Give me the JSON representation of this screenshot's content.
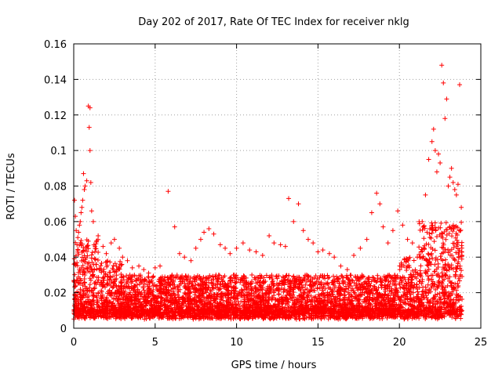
{
  "chart_data": {
    "type": "scatter",
    "title": "Day 202 of 2017, Rate Of TEC Index for receiver nklg",
    "xlabel": "GPS time / hours",
    "ylabel": "ROTI / TECUs",
    "xlim": [
      0,
      25
    ],
    "ylim": [
      0,
      0.16
    ],
    "x_ticks": [
      0,
      5,
      10,
      15,
      20,
      25
    ],
    "x_tick_labels": [
      "0",
      "5",
      "10",
      "15",
      "20",
      "25"
    ],
    "y_ticks": [
      0,
      0.02,
      0.04,
      0.06,
      0.08,
      0.1,
      0.12,
      0.14,
      0.16
    ],
    "y_tick_labels": [
      "0",
      "0.02",
      "0.04",
      "0.06",
      "0.08",
      "0.1",
      "0.12",
      "0.14",
      "0.16"
    ],
    "grid": true,
    "marker": "plus",
    "color": "#ff0000",
    "series": [
      {
        "values_x": [
          0.05,
          0.1,
          0.15,
          0.2,
          0.25,
          0.3,
          0.35,
          0.4,
          0.45,
          0.5,
          0.55,
          0.6,
          0.65,
          0.7,
          0.8,
          0.9,
          0.95,
          1.0,
          1.0,
          1.05,
          1.1,
          1.2,
          1.5,
          1.8,
          2.0,
          2.3,
          2.5,
          2.8,
          3.0,
          3.3,
          3.6,
          4.0,
          4.3,
          4.6,
          5.0,
          5.3,
          5.8,
          6.2,
          6.5,
          6.8,
          7.2,
          7.5,
          7.8,
          8.0,
          8.3,
          8.6,
          9.0,
          9.3,
          9.6,
          10.0,
          10.4,
          10.8,
          11.2,
          11.6,
          12.0,
          12.3,
          12.7,
          13.0,
          13.2,
          13.5,
          13.8,
          14.1,
          14.4,
          14.7,
          15.0,
          15.3,
          15.7,
          16.0,
          16.4,
          16.8,
          17.2,
          17.6,
          18.0,
          18.3,
          18.6,
          18.8,
          19.0,
          19.3,
          19.6,
          19.9,
          20.2,
          20.5,
          20.8,
          21.1,
          21.4,
          21.6,
          21.8,
          22.0,
          22.1,
          22.2,
          22.3,
          22.4,
          22.5,
          22.6,
          22.7,
          22.8,
          22.9,
          23.0,
          23.1,
          23.2,
          23.3,
          23.4,
          23.5,
          23.6,
          23.7,
          23.8
        ],
        "values_y": [
          0.072,
          0.063,
          0.055,
          0.047,
          0.051,
          0.054,
          0.058,
          0.06,
          0.065,
          0.068,
          0.072,
          0.087,
          0.078,
          0.08,
          0.083,
          0.125,
          0.113,
          0.1,
          0.124,
          0.082,
          0.066,
          0.06,
          0.052,
          0.046,
          0.042,
          0.048,
          0.05,
          0.045,
          0.04,
          0.038,
          0.034,
          0.035,
          0.033,
          0.031,
          0.034,
          0.035,
          0.077,
          0.057,
          0.042,
          0.04,
          0.038,
          0.045,
          0.05,
          0.054,
          0.056,
          0.053,
          0.047,
          0.045,
          0.042,
          0.045,
          0.048,
          0.044,
          0.043,
          0.041,
          0.052,
          0.048,
          0.047,
          0.046,
          0.073,
          0.06,
          0.07,
          0.055,
          0.05,
          0.048,
          0.043,
          0.044,
          0.042,
          0.04,
          0.035,
          0.033,
          0.041,
          0.045,
          0.05,
          0.065,
          0.076,
          0.07,
          0.057,
          0.048,
          0.055,
          0.066,
          0.058,
          0.05,
          0.048,
          0.04,
          0.06,
          0.075,
          0.095,
          0.105,
          0.112,
          0.1,
          0.088,
          0.098,
          0.093,
          0.148,
          0.138,
          0.118,
          0.129,
          0.08,
          0.085,
          0.09,
          0.082,
          0.078,
          0.075,
          0.081,
          0.137,
          0.068
        ],
        "baseline_band": [
          0.005,
          0.03
        ]
      }
    ]
  }
}
